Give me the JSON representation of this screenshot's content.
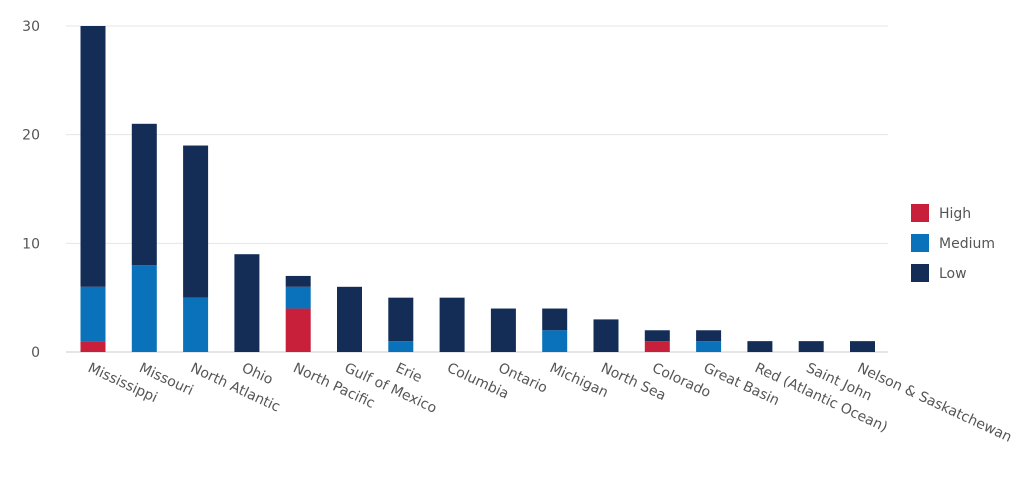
{
  "chart_data": {
    "type": "bar",
    "stacked": true,
    "title": "",
    "xlabel": "",
    "ylabel": "",
    "ylim": [
      0,
      30
    ],
    "yticks": [
      "0",
      "10",
      "20",
      "30"
    ],
    "grid": true,
    "legend_position": "right",
    "categories": [
      "Mississippi",
      "Missouri",
      "North Atlantic",
      "Ohio",
      "North Pacific",
      "Gulf of Mexico",
      "Erie",
      "Columbia",
      "Ontario",
      "Michigan",
      "North Sea",
      "Colorado",
      "Great Basin",
      "Red (Atlantic Ocean)",
      "Saint John",
      "Nelson & Saskatchewan"
    ],
    "series": [
      {
        "name": "High",
        "color": "#C8203A",
        "values": [
          1,
          0,
          0,
          0,
          4,
          0,
          0,
          0,
          0,
          0,
          0,
          1,
          0,
          0,
          0,
          0
        ]
      },
      {
        "name": "Medium",
        "color": "#0A72BA",
        "values": [
          5,
          8,
          5,
          0,
          2,
          0,
          1,
          0,
          0,
          2,
          0,
          0,
          1,
          0,
          0,
          0
        ]
      },
      {
        "name": "Low",
        "color": "#142D57",
        "values": [
          24,
          13,
          14,
          9,
          1,
          6,
          4,
          5,
          4,
          2,
          3,
          1,
          1,
          1,
          1,
          1
        ]
      }
    ]
  }
}
